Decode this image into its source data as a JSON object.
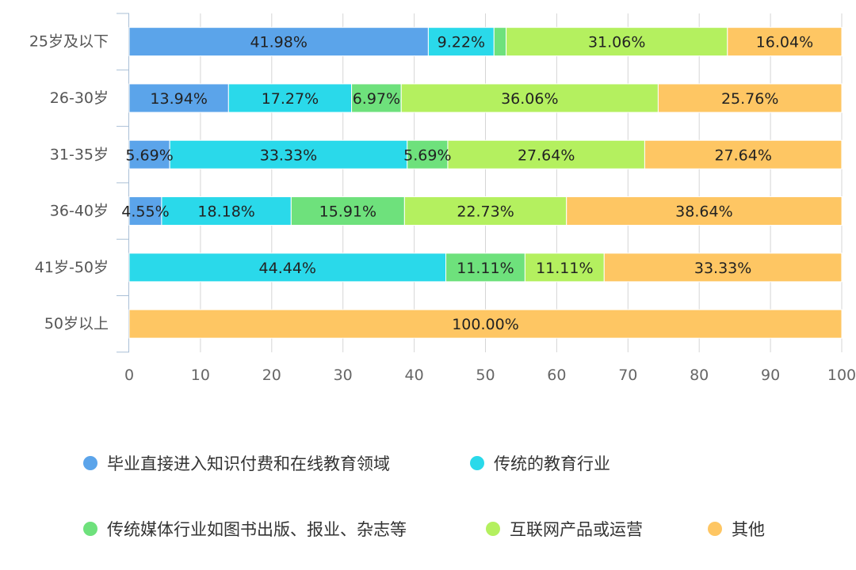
{
  "chart_data": {
    "type": "bar",
    "orientation": "horizontal",
    "stacked": true,
    "categories": [
      "25岁及以下",
      "26-30岁",
      "31-35岁",
      "36-40岁",
      "41岁-50岁",
      "50岁以上"
    ],
    "series": [
      {
        "name": "毕业直接进入知识付费和在线教育领域",
        "color": "#5ba4ea",
        "values": [
          41.98,
          13.94,
          5.69,
          4.55,
          0,
          0
        ]
      },
      {
        "name": "传统的教育行业",
        "color": "#2ad9ea",
        "values": [
          9.22,
          17.27,
          33.33,
          18.18,
          44.44,
          0
        ]
      },
      {
        "name": "传统媒体行业如图书出版、报业、杂志等",
        "color": "#6ee17c",
        "values": [
          1.7,
          6.97,
          5.69,
          15.91,
          11.11,
          0
        ]
      },
      {
        "name": "互联网产品或运营",
        "color": "#b4f05f",
        "values": [
          31.06,
          36.06,
          27.64,
          22.73,
          11.11,
          0
        ]
      },
      {
        "name": "其他",
        "color": "#fec663",
        "values": [
          16.04,
          25.76,
          27.64,
          38.64,
          33.33,
          100
        ]
      }
    ],
    "data_labels": [
      [
        "41.98%",
        "13.94%",
        "5.69%",
        "4.55%",
        "",
        ""
      ],
      [
        "9.22%",
        "17.27%",
        "33.33%",
        "18.18%",
        "44.44%",
        ""
      ],
      [
        "",
        "6.97%",
        "5.69%",
        "15.91%",
        "11.11%",
        ""
      ],
      [
        "31.06%",
        "36.06%",
        "27.64%",
        "22.73%",
        "11.11%",
        ""
      ],
      [
        "16.04%",
        "25.76%",
        "27.64%",
        "38.64%",
        "33.33%",
        "100.00%"
      ]
    ],
    "xticks": [
      "0",
      "10",
      "20",
      "30",
      "40",
      "50",
      "60",
      "70",
      "80",
      "90",
      "100"
    ],
    "xlim": [
      0,
      100
    ],
    "grid": true,
    "legend_position": "bottom"
  }
}
